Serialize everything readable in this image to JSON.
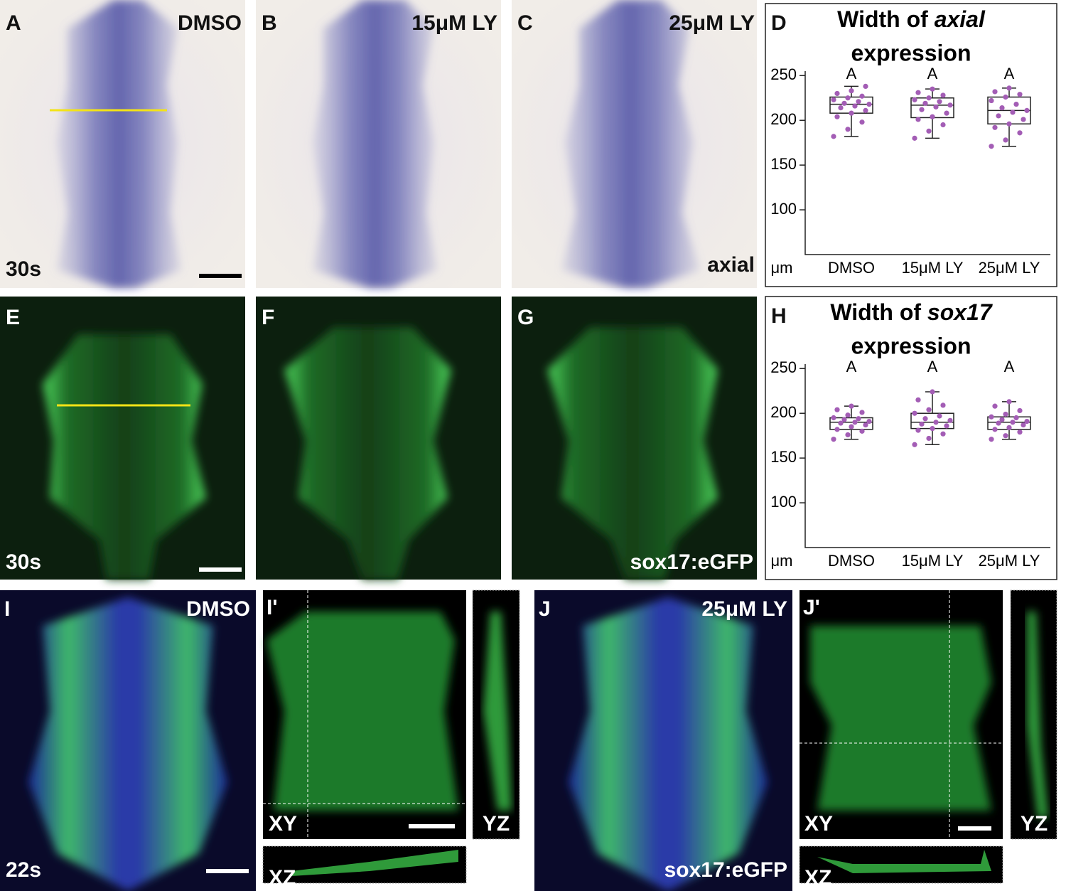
{
  "chart_data": [
    {
      "type": "box",
      "label": "D",
      "title": [
        "Width of",
        "axial",
        "expression"
      ],
      "y_unit": "μm",
      "categories": [
        "DMSO",
        "15μM LY",
        "25μM LY"
      ],
      "sig_letters": [
        "A",
        "A",
        "A"
      ],
      "ylim": [
        50,
        255
      ],
      "yticks": [
        100,
        150,
        200,
        250
      ],
      "color": "#a35db5",
      "box_stats": [
        {
          "min": 182,
          "q1": 208,
          "median": 218,
          "q3": 226,
          "max": 238
        },
        {
          "min": 180,
          "q1": 203,
          "median": 217,
          "q3": 225,
          "max": 235
        },
        {
          "min": 171,
          "q1": 196,
          "median": 211,
          "q3": 226,
          "max": 236
        }
      ],
      "points": [
        [
          182,
          190,
          198,
          204,
          208,
          211,
          214,
          216,
          218,
          219,
          221,
          223,
          225,
          227,
          230,
          233,
          238
        ],
        [
          180,
          188,
          195,
          201,
          204,
          208,
          212,
          215,
          217,
          219,
          221,
          223,
          225,
          228,
          231,
          235
        ],
        [
          171,
          178,
          186,
          192,
          196,
          201,
          205,
          209,
          211,
          214,
          218,
          222,
          226,
          229,
          232,
          236
        ]
      ]
    },
    {
      "type": "box",
      "label": "H",
      "title": [
        "Width of",
        "sox17",
        "expression"
      ],
      "y_unit": "μm",
      "categories": [
        "DMSO",
        "15μM LY",
        "25μM LY"
      ],
      "sig_letters": [
        "A",
        "A",
        "A"
      ],
      "ylim": [
        50,
        255
      ],
      "yticks": [
        100,
        150,
        200,
        250
      ],
      "color": "#a35db5",
      "box_stats": [
        {
          "min": 171,
          "q1": 182,
          "median": 190,
          "q3": 195,
          "max": 208
        },
        {
          "min": 165,
          "q1": 183,
          "median": 190,
          "q3": 200,
          "max": 224
        },
        {
          "min": 171,
          "q1": 182,
          "median": 190,
          "q3": 196,
          "max": 213
        }
      ],
      "points": [
        [
          171,
          176,
          180,
          182,
          185,
          187,
          189,
          190,
          191,
          193,
          194,
          195,
          198,
          201,
          204,
          208
        ],
        [
          165,
          172,
          177,
          181,
          183,
          186,
          188,
          190,
          192,
          194,
          197,
          200,
          204,
          209,
          215,
          224
        ],
        [
          171,
          175,
          179,
          182,
          184,
          187,
          189,
          190,
          191,
          193,
          195,
          196,
          199,
          203,
          208,
          213
        ]
      ]
    }
  ],
  "panels": {
    "A": {
      "label": "A",
      "condition": "DMSO",
      "stage": "30s"
    },
    "B": {
      "label": "B",
      "condition": "15μM LY"
    },
    "C": {
      "label": "C",
      "condition": "25μM LY",
      "marker": "axial"
    },
    "E": {
      "label": "E",
      "stage": "30s"
    },
    "F": {
      "label": "F"
    },
    "G": {
      "label": "G",
      "marker": "sox17:eGFP"
    },
    "I": {
      "label": "I",
      "condition": "DMSO",
      "stage": "22s"
    },
    "I2": {
      "label": "I'",
      "xy": "XY",
      "yz": "YZ",
      "xz": "XZ"
    },
    "J": {
      "label": "J",
      "condition": "25μM LY",
      "marker": "sox17:eGFP"
    },
    "J2": {
      "label": "J'",
      "xy": "XY",
      "yz": "YZ",
      "xz": "XZ"
    }
  }
}
